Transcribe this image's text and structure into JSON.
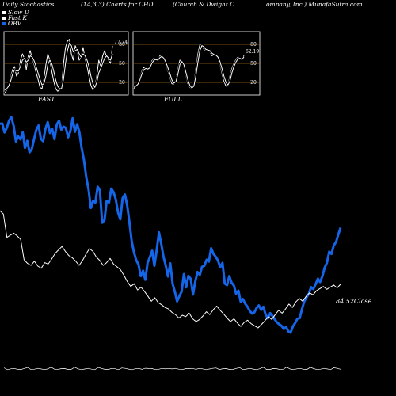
{
  "header": {
    "title": "Daily Stochastics",
    "params": "(14,3,3) Charts for CHD",
    "company_part1": "(Church & Dwight C",
    "company_part2": "ompany, Inc.) MunafaSutra.com"
  },
  "legend": [
    {
      "label": "Slow D",
      "color": "#ffffff"
    },
    {
      "label": "Fast K",
      "color": "#ffffff"
    },
    {
      "label": "OBV",
      "color": "#1565e8"
    }
  ],
  "colors": {
    "obv": "#1565e8",
    "price": "#ffffff",
    "level_line": "#a0661c",
    "background": "#000000"
  },
  "chart_data": [
    {
      "type": "line",
      "title": "FAST",
      "ylim": [
        0,
        100
      ],
      "ticks": [
        "20",
        "50",
        "80"
      ],
      "levels": [
        20,
        50,
        80
      ],
      "end_label": "77.74",
      "series": [
        {
          "values": [
            3,
            8,
            15,
            28,
            40,
            45,
            30,
            35,
            55,
            65,
            58,
            40,
            62,
            70,
            58,
            48,
            35,
            25,
            12,
            10,
            25,
            48,
            65,
            55,
            38,
            22,
            10,
            6,
            8,
            12,
            50,
            75,
            85,
            88,
            65,
            55,
            78,
            70,
            55,
            60,
            75,
            58,
            45,
            30,
            15,
            8,
            12,
            30,
            55,
            45,
            62,
            70,
            60,
            55,
            50,
            77.74
          ]
        },
        {
          "values": [
            8,
            10,
            14,
            22,
            33,
            40,
            38,
            38,
            45,
            55,
            58,
            52,
            55,
            62,
            60,
            54,
            45,
            35,
            25,
            16,
            18,
            30,
            48,
            55,
            50,
            38,
            24,
            14,
            10,
            10,
            25,
            50,
            70,
            82,
            78,
            68,
            70,
            72,
            65,
            60,
            65,
            62,
            55,
            45,
            30,
            18,
            12,
            20,
            35,
            42,
            50,
            58,
            62,
            58,
            55,
            65
          ]
        }
      ]
    },
    {
      "type": "line",
      "title": "FULL",
      "ylim": [
        0,
        100
      ],
      "ticks": [
        "20",
        "50",
        "80"
      ],
      "levels": [
        20,
        50,
        80
      ],
      "end_label": "62.19",
      "series": [
        {
          "values": [
            10,
            13,
            18,
            28,
            38,
            44,
            42,
            40,
            45,
            54,
            58,
            55,
            56,
            62,
            62,
            56,
            48,
            38,
            28,
            18,
            17,
            25,
            42,
            55,
            54,
            44,
            30,
            18,
            12,
            10,
            18,
            42,
            65,
            80,
            80,
            72,
            70,
            72,
            68,
            62,
            64,
            63,
            58,
            48,
            34,
            22,
            14,
            16,
            30,
            42,
            50,
            56,
            60,
            58,
            55,
            62.19
          ]
        },
        {
          "values": [
            12,
            14,
            17,
            24,
            33,
            40,
            42,
            41,
            43,
            50,
            55,
            56,
            55,
            59,
            61,
            58,
            52,
            43,
            34,
            24,
            19,
            21,
            33,
            48,
            53,
            48,
            36,
            24,
            15,
            11,
            14,
            30,
            52,
            70,
            78,
            76,
            72,
            71,
            70,
            66,
            64,
            63,
            60,
            53,
            42,
            30,
            20,
            16,
            22,
            35,
            45,
            52,
            57,
            58,
            56,
            60
          ]
        }
      ]
    },
    {
      "type": "line",
      "series": [
        {
          "name": "OBV",
          "values": [
            1.45,
            1.46,
            1.03,
            1.26,
            1.61,
            1.77,
            1.36,
            0.59,
            0.83,
            0.69,
            1.04,
            0.27,
            0.62,
            0.06,
            0.21,
            0.7,
            1.16,
            1.37,
            0.71,
            0.6,
            1.19,
            1.53,
            1.0,
            1.2,
            0.7,
            1.41,
            1.6,
            1.16,
            1.31,
            1.25,
            0.79,
            1.09,
            1.72,
            1.06,
            1.43,
            1.02,
            0.24,
            -0.34,
            -1.16,
            -1.75,
            -2.66,
            -2.32,
            -2.39,
            -1.62,
            -1.8,
            -3.38,
            -3.25,
            -2.31,
            -2.39,
            -1.71,
            -1.88,
            -2.24,
            -2.89,
            -3.21,
            -2.18,
            -2.0,
            -2.51,
            -3.35,
            -4.28,
            -4.82,
            -5.2,
            -5.42,
            -5.98,
            -5.72,
            -6.16,
            -5.34,
            -5.06,
            -4.74,
            -5.48,
            -4.73,
            -3.85,
            -4.39,
            -5.03,
            -5.48,
            -6.0,
            -5.36,
            -6.35,
            -6.73,
            -7.21,
            -6.95,
            -6.74,
            -5.88,
            -6.53,
            -5.97,
            -6.12,
            -6.88,
            -6.26,
            -5.78,
            -5.92,
            -5.53,
            -5.48,
            -5.18,
            -5.27,
            -4.62,
            -4.9,
            -5.03,
            -5.22,
            -5.55,
            -5.34,
            -6.35,
            -6.42,
            -5.98,
            -6.3,
            -6.44,
            -6.84,
            -6.69,
            -7.23,
            -7.1,
            -7.33,
            -7.48,
            -7.67,
            -7.81,
            -7.75,
            -7.54,
            -7.41,
            -7.63,
            -7.48,
            -7.86,
            -8.05,
            -7.79,
            -7.92,
            -8.1,
            -8.24,
            -8.33,
            -8.41,
            -8.56,
            -8.47,
            -8.68,
            -8.74,
            -8.44,
            -8.27,
            -8.06,
            -8.03,
            -7.59,
            -7.22,
            -7.02,
            -6.85,
            -6.52,
            -6.61,
            -6.38,
            -6.11,
            -6.27,
            -5.98,
            -5.57,
            -5.33,
            -4.79,
            -4.9,
            -4.49,
            -4.31,
            -3.96,
            -3.62
          ]
        },
        {
          "name": "Close",
          "values": [
            95,
            94.5,
            91.2,
            91.5,
            91.8,
            91.4,
            90.9,
            88,
            87.5,
            87.2,
            87.8,
            87.1,
            86.8,
            87.6,
            87.4,
            88.1,
            88.9,
            89.4,
            89.9,
            89.2,
            88.6,
            88.3,
            87.8,
            87.2,
            87.9,
            88.8,
            89.6,
            89.2,
            88.4,
            87.9,
            87.2,
            87.6,
            88.2,
            87.4,
            87.0,
            86.6,
            85.8,
            84.9,
            84.2,
            84.6,
            83.7,
            84.1,
            83.5,
            82.8,
            82.1,
            82.6,
            81.9,
            81.6,
            81.2,
            81.0,
            80.5,
            80.2,
            79.7,
            80.1,
            79.9,
            80.4,
            79.6,
            79.2,
            79.5,
            80.0,
            80.6,
            80.2,
            80.9,
            81.4,
            80.8,
            80.3,
            79.7,
            79.2,
            79.6,
            79.0,
            78.5,
            79.1,
            79.4,
            78.9,
            78.6,
            78.3,
            78.8,
            79.3,
            79.9,
            79.5,
            80.2,
            80.8,
            80.4,
            81.0,
            81.7,
            81.2,
            82.0,
            82.5,
            82.1,
            82.8,
            83.3,
            83.0,
            83.6,
            83.9,
            84.2,
            83.8,
            84.1,
            84.4,
            84.0,
            84.52
          ]
        }
      ],
      "end_label": "84.52Close"
    }
  ]
}
